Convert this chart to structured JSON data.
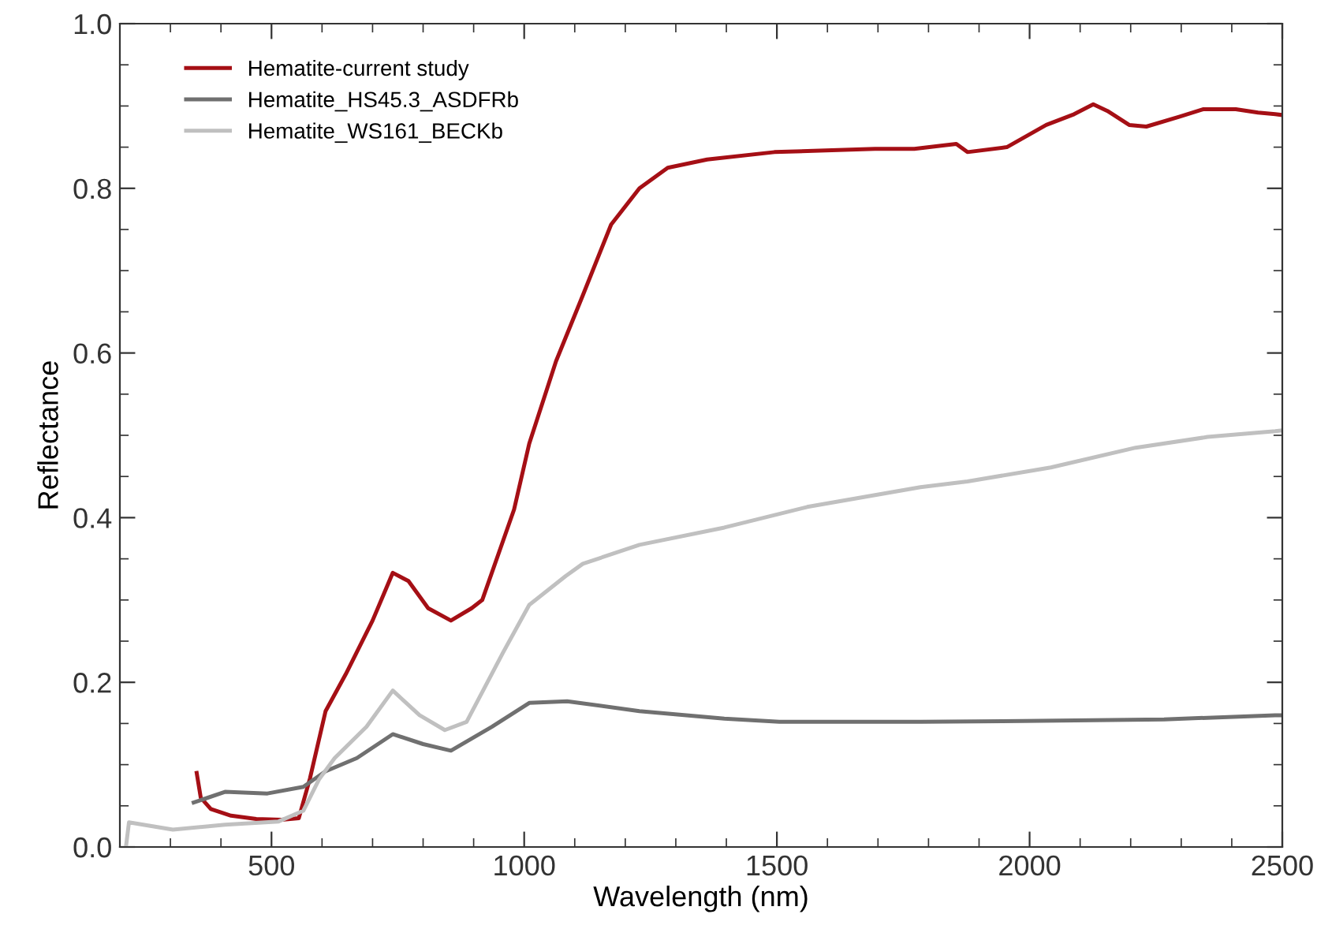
{
  "chart_data": {
    "type": "line",
    "xlabel": "Wavelength (nm)",
    "ylabel": "Reflectance",
    "xlim": [
      200,
      2500
    ],
    "xticks": [
      500,
      1000,
      1500,
      2000,
      2500
    ],
    "ylim": [
      0,
      1.0
    ],
    "yticks": [
      {
        "value": 0,
        "label": "0.0"
      },
      {
        "value": 0.2,
        "label": "0.2"
      },
      {
        "value": 0.4,
        "label": "0.4"
      },
      {
        "value": 0.6,
        "label": "0.6"
      },
      {
        "value": 0.8,
        "label": "0.8"
      },
      {
        "value": 1.0,
        "label": "1.0"
      }
    ],
    "grid": false,
    "legend": "top left",
    "marker": "none",
    "line_style": "solid",
    "series": [
      {
        "name": "Hematite-current study",
        "color": "#a50f15",
        "x": [
          352,
          360,
          380,
          420,
          470,
          520,
          554,
          576,
          607,
          647,
          700,
          740,
          771,
          810,
          855,
          896,
          917,
          980,
          1010,
          1063,
          1116,
          1172,
          1228,
          1284,
          1362,
          1495,
          1694,
          1772,
          1828,
          1855,
          1877,
          1955,
          2033,
          2088,
          2126,
          2154,
          2197,
          2231,
          2297,
          2343,
          2408,
          2452,
          2486,
          2500
        ],
        "values": [
          0.09,
          0.06,
          0.046,
          0.038,
          0.034,
          0.033,
          0.035,
          0.083,
          0.165,
          0.21,
          0.275,
          0.333,
          0.323,
          0.29,
          0.275,
          0.29,
          0.3,
          0.41,
          0.49,
          0.59,
          0.67,
          0.756,
          0.8,
          0.825,
          0.835,
          0.844,
          0.848,
          0.848,
          0.852,
          0.854,
          0.844,
          0.85,
          0.877,
          0.89,
          0.902,
          0.894,
          0.877,
          0.875,
          0.887,
          0.896,
          0.896,
          0.892,
          0.89,
          0.889
        ]
      },
      {
        "name": "Hematite_HS45.3_ASDFRb",
        "color": "#707070",
        "x": [
          346,
          408,
          492,
          563,
          607,
          669,
          740,
          800,
          855,
          936,
          1010,
          1085,
          1228,
          1396,
          1505,
          1784,
          1986,
          2266,
          2486,
          2500
        ],
        "values": [
          0.054,
          0.067,
          0.065,
          0.073,
          0.092,
          0.108,
          0.137,
          0.125,
          0.117,
          0.146,
          0.175,
          0.177,
          0.165,
          0.156,
          0.152,
          0.152,
          0.153,
          0.155,
          0.16,
          0.16
        ]
      },
      {
        "name": "Hematite_WS161_BECKb",
        "color": "#c0c0c0",
        "x": [
          212,
          218,
          305,
          408,
          514,
          563,
          594,
          625,
          688,
          740,
          793,
          843,
          886,
          958,
          1010,
          1082,
          1116,
          1228,
          1396,
          1560,
          1784,
          1877,
          2042,
          2210,
          2352,
          2486,
          2500
        ],
        "values": [
          0.0,
          0.03,
          0.021,
          0.027,
          0.031,
          0.044,
          0.082,
          0.108,
          0.146,
          0.19,
          0.16,
          0.142,
          0.152,
          0.236,
          0.294,
          0.329,
          0.344,
          0.367,
          0.388,
          0.413,
          0.437,
          0.444,
          0.461,
          0.485,
          0.498,
          0.505,
          0.506
        ]
      }
    ]
  }
}
